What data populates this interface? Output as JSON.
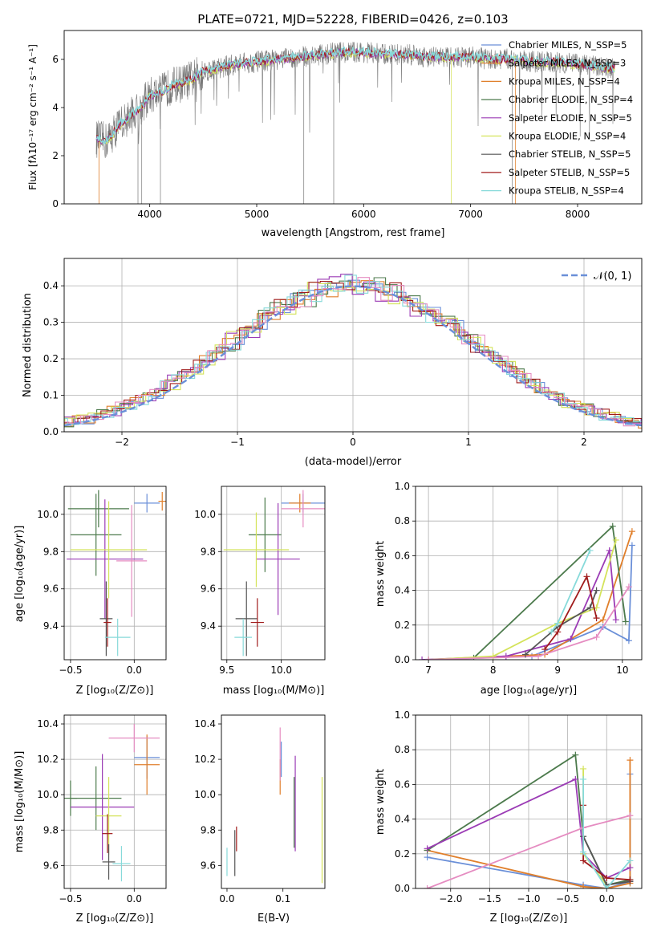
{
  "chart_data": [
    {
      "type": "line",
      "title": "PLATE=0721, MJD=52228, FIBERID=0426, z=0.103",
      "xlabel": "wavelength [Angstrom, rest frame]",
      "ylabel": "Flux [fλ10⁻¹⁷ erg cm⁻² s⁻¹ A⁻¹]",
      "xlim": [
        3200,
        8600
      ],
      "ylim": [
        0,
        7.2
      ],
      "xticks": [
        "4000",
        "5000",
        "6000",
        "7000",
        "8000"
      ],
      "yticks": [
        "0",
        "2",
        "4",
        "6"
      ],
      "grid": false,
      "legend_position": "top-right",
      "series": [
        {
          "name": "Chabrier MILES, N_SSP=5",
          "color": "#6a8fd8"
        },
        {
          "name": "Salpeter MILES, N_SSP=3",
          "color": "#e07f2b"
        },
        {
          "name": "Kroupa MILES, N_SSP=4",
          "color": "#e07f2b"
        },
        {
          "name": "Chabrier ELODIE, N_SSP=4",
          "color": "#4c7a4c"
        },
        {
          "name": "Salpeter ELODIE, N_SSP=5",
          "color": "#9b3bb5"
        },
        {
          "name": "Kroupa ELODIE, N_SSP=4",
          "color": "#d4e35a"
        },
        {
          "name": "Chabrier STELIB, N_SSP=5",
          "color": "#555555"
        },
        {
          "name": "Salpeter STELIB, N_SSP=5",
          "color": "#a01c1c"
        },
        {
          "name": "Kroupa STELIB, N_SSP=4",
          "color": "#87dada"
        }
      ],
      "continuum": [
        [
          3500,
          2.7
        ],
        [
          3600,
          2.6
        ],
        [
          3700,
          3.2
        ],
        [
          3800,
          3.6
        ],
        [
          3900,
          3.9
        ],
        [
          4000,
          4.5
        ],
        [
          4100,
          4.6
        ],
        [
          4200,
          4.9
        ],
        [
          4300,
          5.0
        ],
        [
          4400,
          5.2
        ],
        [
          4500,
          5.5
        ],
        [
          4600,
          5.6
        ],
        [
          4800,
          5.8
        ],
        [
          5000,
          5.9
        ],
        [
          5200,
          6.0
        ],
        [
          5400,
          6.1
        ],
        [
          5600,
          6.2
        ],
        [
          5800,
          6.3
        ],
        [
          6000,
          6.3
        ],
        [
          6200,
          6.2
        ],
        [
          6400,
          6.2
        ],
        [
          6600,
          6.1
        ],
        [
          6800,
          6.1
        ],
        [
          7000,
          6.1
        ],
        [
          7200,
          6.0
        ],
        [
          7400,
          6.0
        ],
        [
          7600,
          5.9
        ],
        [
          7800,
          5.9
        ],
        [
          8000,
          5.8
        ],
        [
          8200,
          5.7
        ],
        [
          8350,
          5.6
        ]
      ]
    },
    {
      "type": "area",
      "xlabel": "(data-model)/error",
      "ylabel": "Normed distribution",
      "xlim": [
        -2.5,
        2.5
      ],
      "ylim": [
        0,
        0.475
      ],
      "xticks": [
        "−2",
        "−1",
        "0",
        "1",
        "2"
      ],
      "yticks": [
        "0.0",
        "0.1",
        "0.2",
        "0.3",
        "0.4"
      ],
      "grid": true,
      "legend_position": "top-right",
      "legend": [
        "𝒩(0, 1)"
      ],
      "reference_curve": {
        "name": "𝒩(0, 1)",
        "mean": 0,
        "sigma": 1,
        "color": "#6a8fd8"
      },
      "bin_width": 0.1,
      "histogram_colors": [
        "#6a8fd8",
        "#e07f2b",
        "#4c7a4c",
        "#9b3bb5",
        "#d4e35a",
        "#a01c1c",
        "#87dada",
        "#e58cc1"
      ]
    },
    {
      "type": "scatter",
      "xlabel": "Z [log₁₀(Z/Z⊙)]",
      "ylabel": "age  [log₁₀(age/yr)]",
      "xlim": [
        -0.55,
        0.25
      ],
      "ylim": [
        9.22,
        10.15
      ],
      "xticks": [
        "−0.5",
        "0.0"
      ],
      "yticks": [
        "9.4",
        "9.6",
        "9.8",
        "10.0"
      ],
      "grid": true,
      "points": [
        {
          "x": 0.1,
          "y": 10.06,
          "xerr": 0.1,
          "yerr": 0.05,
          "color": "#6a8fd8"
        },
        {
          "x": 0.22,
          "y": 10.07,
          "xerr": 0.03,
          "yerr": 0.05,
          "color": "#e07f2b"
        },
        {
          "x": -0.28,
          "y": 10.03,
          "xerr": 0.24,
          "yerr": 0.1,
          "color": "#4c7a4c"
        },
        {
          "x": -0.3,
          "y": 9.89,
          "xerr": 0.2,
          "yerr": 0.22,
          "color": "#4c7a4c"
        },
        {
          "x": -0.23,
          "y": 9.76,
          "xerr": 0.3,
          "yerr": 0.32,
          "color": "#9b3bb5"
        },
        {
          "x": -0.2,
          "y": 9.81,
          "xerr": 0.3,
          "yerr": 0.26,
          "color": "#d4e35a"
        },
        {
          "x": -0.02,
          "y": 9.75,
          "xerr": 0.12,
          "yerr": 0.3,
          "color": "#e58cc1"
        },
        {
          "x": -0.22,
          "y": 9.44,
          "xerr": 0.05,
          "yerr": 0.2,
          "color": "#555555"
        },
        {
          "x": -0.21,
          "y": 9.42,
          "xerr": 0.03,
          "yerr": 0.13,
          "color": "#a01c1c"
        },
        {
          "x": -0.13,
          "y": 9.34,
          "xerr": 0.1,
          "yerr": 0.1,
          "color": "#87dada"
        }
      ]
    },
    {
      "type": "scatter",
      "xlabel": "mass [log₁₀(M/M⊙)]",
      "xlim": [
        9.45,
        10.4
      ],
      "ylim": [
        9.22,
        10.15
      ],
      "xticks": [
        "9.5",
        "10.0"
      ],
      "yticks": [
        "9.4",
        "9.6",
        "9.8",
        "10.0"
      ],
      "grid": true,
      "points": [
        {
          "x": 10.2,
          "y": 10.06,
          "xerr": 0.2,
          "yerr": 0.05,
          "color": "#6a8fd8"
        },
        {
          "x": 10.17,
          "y": 10.06,
          "xerr": 0.1,
          "yerr": 0.05,
          "color": "#e07f2b"
        },
        {
          "x": 9.85,
          "y": 9.89,
          "xerr": 0.15,
          "yerr": 0.2,
          "color": "#4c7a4c"
        },
        {
          "x": 9.97,
          "y": 9.76,
          "xerr": 0.2,
          "yerr": 0.3,
          "color": "#9b3bb5"
        },
        {
          "x": 9.77,
          "y": 9.81,
          "xerr": 0.3,
          "yerr": 0.2,
          "color": "#d4e35a"
        },
        {
          "x": 10.2,
          "y": 10.03,
          "xerr": 0.2,
          "yerr": 0.1,
          "color": "#e58cc1"
        },
        {
          "x": 9.68,
          "y": 9.44,
          "xerr": 0.1,
          "yerr": 0.2,
          "color": "#555555"
        },
        {
          "x": 9.78,
          "y": 9.42,
          "xerr": 0.06,
          "yerr": 0.13,
          "color": "#a01c1c"
        },
        {
          "x": 9.65,
          "y": 9.34,
          "xerr": 0.08,
          "yerr": 0.1,
          "color": "#87dada"
        }
      ]
    },
    {
      "type": "line",
      "xlabel": "age  [log₁₀(age/yr)]",
      "ylabel": "mass weight",
      "xlim": [
        6.8,
        10.3
      ],
      "ylim": [
        0,
        1.0
      ],
      "xticks": [
        "7",
        "8",
        "9",
        "10"
      ],
      "yticks": [
        "0.0",
        "0.2",
        "0.4",
        "0.6",
        "0.8",
        "1.0"
      ],
      "grid": true,
      "series": [
        {
          "color": "#6a8fd8",
          "x": [
            7.0,
            8.6,
            9.7,
            10.1,
            10.15
          ],
          "y": [
            0.0,
            0.02,
            0.19,
            0.11,
            0.66
          ]
        },
        {
          "color": "#e07f2b",
          "x": [
            7.0,
            8.8,
            9.7,
            10.15
          ],
          "y": [
            0.0,
            0.03,
            0.23,
            0.74
          ]
        },
        {
          "color": "#4c7a4c",
          "x": [
            7.7,
            9.85,
            10.05
          ],
          "y": [
            0.01,
            0.77,
            0.22
          ]
        },
        {
          "color": "#9b3bb5",
          "x": [
            6.9,
            8.2,
            9.2,
            9.8,
            9.9
          ],
          "y": [
            0.0,
            0.02,
            0.12,
            0.63,
            0.23
          ]
        },
        {
          "color": "#d4e35a",
          "x": [
            7.0,
            8.0,
            9.0,
            9.6,
            9.9
          ],
          "y": [
            0.0,
            0.02,
            0.21,
            0.3,
            0.69
          ]
        },
        {
          "color": "#e58cc1",
          "x": [
            7.0,
            8.7,
            9.6,
            10.1
          ],
          "y": [
            0.0,
            0.02,
            0.13,
            0.42
          ]
        },
        {
          "color": "#555555",
          "x": [
            8.5,
            9.0,
            9.5,
            9.6
          ],
          "y": [
            0.03,
            0.19,
            0.3,
            0.4
          ]
        },
        {
          "color": "#a01c1c",
          "x": [
            8.8,
            9.0,
            9.45,
            9.6
          ],
          "y": [
            0.06,
            0.16,
            0.48,
            0.24
          ]
        },
        {
          "color": "#87dada",
          "x": [
            8.9,
            9.0,
            9.5
          ],
          "y": [
            0.16,
            0.21,
            0.63
          ]
        }
      ]
    },
    {
      "type": "scatter",
      "xlabel": "Z [log₁₀(Z/Z⊙)]",
      "ylabel": "mass [log₁₀(M/M⊙)]",
      "xlim": [
        -0.55,
        0.25
      ],
      "ylim": [
        9.47,
        10.45
      ],
      "xticks": [
        "−0.5",
        "0.0"
      ],
      "yticks": [
        "9.6",
        "9.8",
        "10.0",
        "10.2",
        "10.4"
      ],
      "grid": true,
      "points": [
        {
          "x": 0.1,
          "y": 10.21,
          "xerr": 0.1,
          "yerr": 0.12,
          "color": "#6a8fd8"
        },
        {
          "x": 0.1,
          "y": 10.17,
          "xerr": 0.1,
          "yerr": 0.17,
          "color": "#e07f2b"
        },
        {
          "x": -0.5,
          "y": 9.98,
          "xerr": 0.05,
          "yerr": 0.1,
          "color": "#4c7a4c"
        },
        {
          "x": -0.3,
          "y": 9.98,
          "xerr": 0.2,
          "yerr": 0.18,
          "color": "#4c7a4c"
        },
        {
          "x": -0.25,
          "y": 9.93,
          "xerr": 0.25,
          "yerr": 0.3,
          "color": "#9b3bb5"
        },
        {
          "x": -0.2,
          "y": 9.88,
          "xerr": 0.1,
          "yerr": 0.22,
          "color": "#d4e35a"
        },
        {
          "x": 0.0,
          "y": 10.32,
          "xerr": 0.2,
          "yerr": 0.08,
          "color": "#e58cc1"
        },
        {
          "x": -0.2,
          "y": 9.62,
          "xerr": 0.05,
          "yerr": 0.1,
          "color": "#555555"
        },
        {
          "x": -0.21,
          "y": 9.78,
          "xerr": 0.04,
          "yerr": 0.11,
          "color": "#a01c1c"
        },
        {
          "x": -0.1,
          "y": 9.61,
          "xerr": 0.07,
          "yerr": 0.1,
          "color": "#87dada"
        }
      ]
    },
    {
      "type": "scatter",
      "xlabel": "E(B-V)",
      "xlim": [
        -0.01,
        0.175
      ],
      "ylim": [
        9.47,
        10.45
      ],
      "xticks": [
        "0.0",
        "0.1"
      ],
      "yticks": [
        "9.6",
        "9.8",
        "10.0",
        "10.2",
        "10.4"
      ],
      "grid": false,
      "points": [
        {
          "x": 0.097,
          "y": 10.2,
          "yerr": 0.1,
          "color": "#6a8fd8"
        },
        {
          "x": 0.095,
          "y": 10.1,
          "yerr": 0.1,
          "color": "#e07f2b"
        },
        {
          "x": 0.12,
          "y": 9.9,
          "yerr": 0.2,
          "color": "#4c7a4c"
        },
        {
          "x": 0.122,
          "y": 9.95,
          "yerr": 0.27,
          "color": "#9b3bb5"
        },
        {
          "x": 0.17,
          "y": 9.8,
          "yerr": 0.3,
          "color": "#d4e35a"
        },
        {
          "x": 0.095,
          "y": 10.23,
          "yerr": 0.15,
          "color": "#e58cc1"
        },
        {
          "x": 0.014,
          "y": 9.67,
          "yerr": 0.13,
          "color": "#555555"
        },
        {
          "x": 0.017,
          "y": 9.75,
          "yerr": 0.07,
          "color": "#a01c1c"
        },
        {
          "x": 0.0,
          "y": 9.62,
          "yerr": 0.08,
          "color": "#87dada"
        }
      ]
    },
    {
      "type": "line",
      "xlabel": "Z [log₁₀(Z/Z⊙)]",
      "ylabel": "mass weight",
      "xlim": [
        -2.45,
        0.45
      ],
      "ylim": [
        0,
        1.0
      ],
      "xticks": [
        "−2.0",
        "−1.5",
        "−1.0",
        "−0.5",
        "0.0"
      ],
      "yticks": [
        "0.0",
        "0.2",
        "0.4",
        "0.6",
        "0.8",
        "1.0"
      ],
      "grid": true,
      "series": [
        {
          "color": "#6a8fd8",
          "x": [
            -2.3,
            -0.3,
            0.0,
            0.3,
            0.3
          ],
          "y": [
            0.18,
            0.02,
            0.0,
            0.04,
            0.66
          ]
        },
        {
          "color": "#e07f2b",
          "x": [
            -2.3,
            -0.3,
            0.0,
            0.3,
            0.3
          ],
          "y": [
            0.22,
            0.01,
            0.0,
            0.03,
            0.74
          ]
        },
        {
          "color": "#4c7a4c",
          "x": [
            -2.3,
            -0.4,
            -0.3,
            0.0,
            0.3
          ],
          "y": [
            0.22,
            0.77,
            0.3,
            0.02,
            0.05
          ]
        },
        {
          "color": "#9b3bb5",
          "x": [
            -2.3,
            -0.4,
            -0.3,
            0.0,
            0.3
          ],
          "y": [
            0.23,
            0.63,
            0.2,
            0.06,
            0.12
          ]
        },
        {
          "color": "#d4e35a",
          "x": [
            -0.3,
            -0.3,
            0.0
          ],
          "y": [
            0.69,
            0.2,
            0.02
          ]
        },
        {
          "color": "#e58cc1",
          "x": [
            -2.3,
            -0.3,
            0.3
          ],
          "y": [
            0.0,
            0.35,
            0.42
          ]
        },
        {
          "color": "#555555",
          "x": [
            -0.3,
            0.0,
            0.3
          ],
          "y": [
            0.3,
            0.02,
            0.04
          ]
        },
        {
          "color": "#a01c1c",
          "x": [
            -0.3,
            -0.3,
            0.0,
            0.3
          ],
          "y": [
            0.48,
            0.16,
            0.06,
            0.05
          ]
        },
        {
          "color": "#87dada",
          "x": [
            -0.3,
            -0.3,
            0.0,
            0.3
          ],
          "y": [
            0.63,
            0.21,
            0.0,
            0.16
          ]
        }
      ]
    }
  ]
}
